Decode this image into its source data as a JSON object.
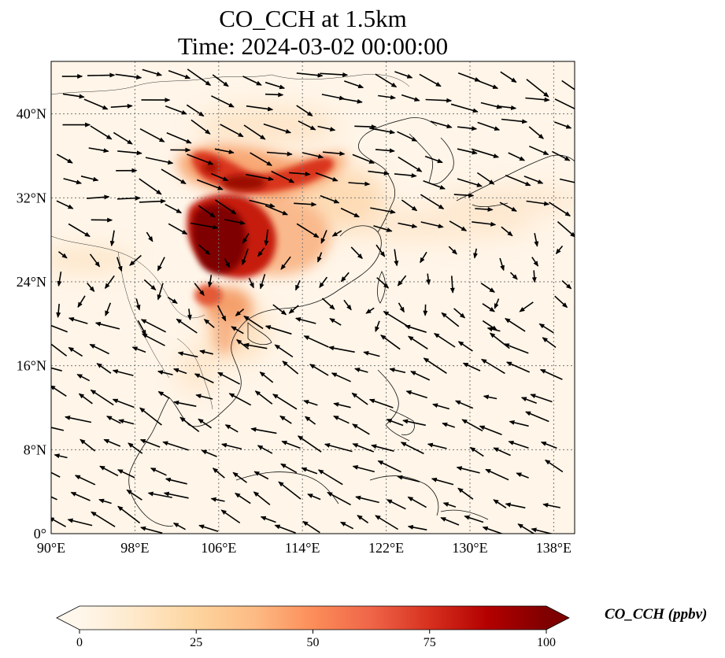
{
  "title": {
    "line1": "CO_CCH at 1.5km",
    "line2": "Time: 2024-03-02 00:00:00"
  },
  "map": {
    "variable": "CO_CCH",
    "level": "1.5km",
    "time": "2024-03-02 00:00:00",
    "lon_range": [
      90,
      140
    ],
    "lat_range": [
      0,
      45
    ],
    "lon_ticks": [
      90,
      98,
      106,
      114,
      122,
      130,
      138
    ],
    "lon_tick_labels": [
      "90°E",
      "98°E",
      "106°E",
      "114°E",
      "122°E",
      "130°E",
      "138°E"
    ],
    "lat_ticks": [
      0,
      8,
      16,
      24,
      32,
      40
    ],
    "lat_tick_labels": [
      "0°",
      "8°N",
      "16°N",
      "24°N",
      "32°N",
      "40°N"
    ],
    "gridlines": true,
    "overlay": "wind vectors",
    "colormap": "OrRd"
  },
  "colorbar": {
    "label": "CO_CCH (ppbv)",
    "min": 0,
    "max": 100,
    "ticks": [
      0,
      25,
      50,
      75,
      100
    ],
    "tick_labels": [
      "0",
      "25",
      "50",
      "75",
      "100"
    ],
    "extend": "both",
    "colors": [
      "#fff7ec",
      "#fee8c8",
      "#fdd49e",
      "#fdbb84",
      "#fc8d59",
      "#ef6548",
      "#d7301f",
      "#b30000",
      "#7f0000"
    ]
  }
}
